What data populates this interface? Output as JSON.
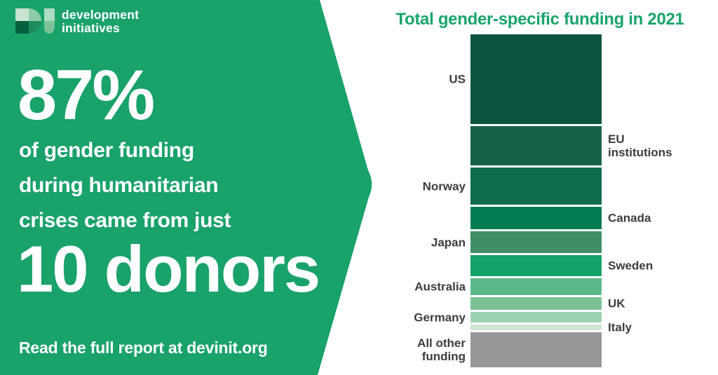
{
  "brand": {
    "wordmark_line1": "development",
    "wordmark_line2": "initiatives",
    "bg_green": "#1AA26B",
    "logo_colors": {
      "d_top_left": "#C8E5D2",
      "d_top_right": "#8FCCAC",
      "d_bottom_left": "#05603E",
      "d_bottom_right": "#1F8C5D",
      "i_top": "#AEDCC3",
      "i_bottom": "#79C29B"
    }
  },
  "left_panel": {
    "headline_stat": "87%",
    "subline1": "of gender funding",
    "subline2": "during humanitarian",
    "subline3": "crises came from just",
    "headline_donors": "10 donors",
    "cta": "Read the full report at devinit.org",
    "text_color": "#FFFFFF"
  },
  "chart_data": {
    "type": "bar",
    "title": "Total gender-specific funding in 2021",
    "title_color": "#18A46D",
    "orientation": "vertical-stacked-single-bar",
    "label_color": "#3D3D3B",
    "legend_position": "labels-beside-segments",
    "grid": false,
    "categories": [
      "US",
      "EU institutions",
      "Norway",
      "Canada",
      "Japan",
      "Sweden",
      "Australia",
      "UK",
      "Germany",
      "Italy",
      "All other funding"
    ],
    "segments": [
      {
        "label": "US",
        "display": "US",
        "side": "left",
        "share_pct": 28.8,
        "color": "#0C5440"
      },
      {
        "label": "EU institutions",
        "display": "EU\ninstitutions",
        "side": "right",
        "share_pct": 12.6,
        "color": "#16604A"
      },
      {
        "label": "Norway",
        "display": "Norway",
        "side": "left",
        "share_pct": 11.9,
        "color": "#0E6B4E"
      },
      {
        "label": "Canada",
        "display": "Canada",
        "side": "right",
        "share_pct": 7.2,
        "color": "#027C52"
      },
      {
        "label": "Japan",
        "display": "Japan",
        "side": "left",
        "share_pct": 7.0,
        "color": "#3F8E66"
      },
      {
        "label": "Sweden",
        "display": "Sweden",
        "side": "right",
        "share_pct": 6.7,
        "color": "#14A369"
      },
      {
        "label": "Australia",
        "display": "Australia",
        "side": "left",
        "share_pct": 5.4,
        "color": "#5BB98B"
      },
      {
        "label": "UK",
        "display": "UK",
        "side": "right",
        "share_pct": 4.0,
        "color": "#7AC295"
      },
      {
        "label": "Germany",
        "display": "Germany",
        "side": "left",
        "share_pct": 3.4,
        "color": "#9CD1B4"
      },
      {
        "label": "Italy",
        "display": "Italy",
        "side": "right",
        "share_pct": 1.8,
        "color": "#CDE6D3"
      },
      {
        "label": "All other funding",
        "display": "All other\nfunding",
        "side": "left",
        "share_pct": 11.2,
        "color": "#979797"
      }
    ]
  }
}
